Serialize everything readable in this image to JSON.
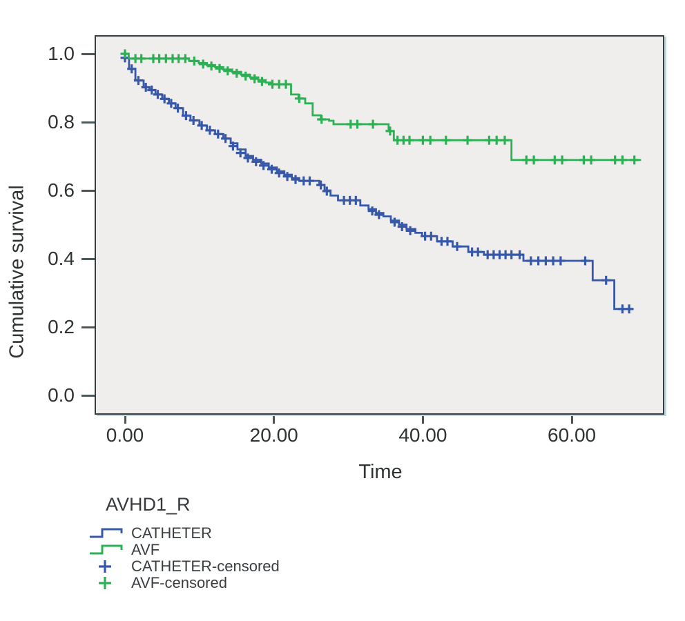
{
  "chart_data": {
    "type": "line",
    "subtype": "kaplan-meier-step",
    "xlabel": "Time",
    "ylabel": "Cumulative survival",
    "x_ticks": [
      {
        "value": 0,
        "label": "0.00"
      },
      {
        "value": 20,
        "label": "20.00"
      },
      {
        "value": 40,
        "label": "40.00"
      },
      {
        "value": 60,
        "label": "60.00"
      }
    ],
    "y_ticks": [
      {
        "value": 1.0,
        "label": "1.0"
      },
      {
        "value": 0.8,
        "label": "0.8"
      },
      {
        "value": 0.6,
        "label": "0.6"
      },
      {
        "value": 0.4,
        "label": "0.4"
      },
      {
        "value": 0.2,
        "label": "0.2"
      },
      {
        "value": 0.0,
        "label": "0.0"
      }
    ],
    "xlim": [
      -4.1,
      72.4
    ],
    "ylim": [
      -0.055,
      1.05
    ],
    "grid": false,
    "plot_bg": "#efeeec",
    "frame_color": "#363d3f",
    "series": [
      {
        "name": "CATHETER",
        "color": "#3758a8",
        "end_time": 68.2,
        "steps": [
          [
            0,
            0.988
          ],
          [
            0.55,
            0.956
          ],
          [
            1.4,
            0.922
          ],
          [
            2.5,
            0.902
          ],
          [
            3.3,
            0.894
          ],
          [
            4.1,
            0.881
          ],
          [
            5.0,
            0.868
          ],
          [
            5.9,
            0.855
          ],
          [
            6.8,
            0.841
          ],
          [
            7.8,
            0.819
          ],
          [
            8.8,
            0.805
          ],
          [
            10.0,
            0.79
          ],
          [
            11.0,
            0.776
          ],
          [
            12.1,
            0.765
          ],
          [
            13.2,
            0.752
          ],
          [
            14.2,
            0.738
          ],
          [
            15.1,
            0.72
          ],
          [
            16.2,
            0.701
          ],
          [
            17.2,
            0.69
          ],
          [
            18.3,
            0.679
          ],
          [
            19.3,
            0.667
          ],
          [
            20.4,
            0.656
          ],
          [
            21.4,
            0.646
          ],
          [
            22.4,
            0.636
          ],
          [
            23.4,
            0.628
          ],
          [
            26.1,
            0.616
          ],
          [
            26.8,
            0.6
          ],
          [
            27.6,
            0.585
          ],
          [
            28.6,
            0.571
          ],
          [
            31.6,
            0.556
          ],
          [
            32.7,
            0.545
          ],
          [
            33.7,
            0.534
          ],
          [
            34.7,
            0.524
          ],
          [
            35.7,
            0.512
          ],
          [
            36.8,
            0.5
          ],
          [
            37.8,
            0.487
          ],
          [
            39.0,
            0.476
          ],
          [
            39.9,
            0.466
          ],
          [
            41.9,
            0.451
          ],
          [
            44.0,
            0.436
          ],
          [
            46.1,
            0.42
          ],
          [
            48.2,
            0.412
          ],
          [
            53.5,
            0.394
          ],
          [
            62.8,
            0.337
          ],
          [
            65.7,
            0.253
          ]
        ],
        "censored": [
          [
            0.0,
            0.988
          ],
          [
            0.9,
            0.956
          ],
          [
            1.8,
            0.922
          ],
          [
            2.8,
            0.902
          ],
          [
            3.6,
            0.894
          ],
          [
            4.4,
            0.881
          ],
          [
            5.3,
            0.868
          ],
          [
            6.2,
            0.855
          ],
          [
            7.1,
            0.841
          ],
          [
            8.2,
            0.819
          ],
          [
            9.2,
            0.805
          ],
          [
            10.3,
            0.79
          ],
          [
            11.4,
            0.776
          ],
          [
            12.5,
            0.765
          ],
          [
            13.5,
            0.752
          ],
          [
            14.5,
            0.73
          ],
          [
            15.5,
            0.71
          ],
          [
            16.5,
            0.695
          ],
          [
            17.6,
            0.684
          ],
          [
            18.6,
            0.673
          ],
          [
            19.7,
            0.662
          ],
          [
            20.7,
            0.651
          ],
          [
            21.8,
            0.641
          ],
          [
            22.9,
            0.632
          ],
          [
            24.0,
            0.628
          ],
          [
            24.8,
            0.628
          ],
          [
            26.3,
            0.616
          ],
          [
            27.1,
            0.598
          ],
          [
            29.4,
            0.571
          ],
          [
            30.2,
            0.571
          ],
          [
            31.0,
            0.571
          ],
          [
            33.2,
            0.54
          ],
          [
            34.1,
            0.529
          ],
          [
            36.2,
            0.507
          ],
          [
            37.2,
            0.494
          ],
          [
            38.3,
            0.482
          ],
          [
            40.3,
            0.466
          ],
          [
            41.1,
            0.466
          ],
          [
            42.5,
            0.451
          ],
          [
            43.3,
            0.451
          ],
          [
            44.6,
            0.436
          ],
          [
            46.6,
            0.42
          ],
          [
            47.4,
            0.42
          ],
          [
            48.7,
            0.412
          ],
          [
            49.5,
            0.412
          ],
          [
            50.3,
            0.412
          ],
          [
            51.1,
            0.412
          ],
          [
            51.9,
            0.412
          ],
          [
            53.0,
            0.412
          ],
          [
            54.5,
            0.394
          ],
          [
            55.5,
            0.394
          ],
          [
            56.5,
            0.394
          ],
          [
            57.5,
            0.394
          ],
          [
            58.5,
            0.394
          ],
          [
            61.8,
            0.394
          ],
          [
            64.6,
            0.337
          ],
          [
            66.8,
            0.253
          ],
          [
            67.7,
            0.253
          ]
        ]
      },
      {
        "name": "AVF",
        "color": "#2bb053",
        "end_time": 69.3,
        "steps": [
          [
            0,
            1.0
          ],
          [
            0.5,
            0.986
          ],
          [
            8.6,
            0.979
          ],
          [
            9.9,
            0.973
          ],
          [
            11.0,
            0.967
          ],
          [
            12.1,
            0.961
          ],
          [
            13.2,
            0.954
          ],
          [
            14.4,
            0.947
          ],
          [
            15.6,
            0.939
          ],
          [
            16.8,
            0.931
          ],
          [
            17.9,
            0.923
          ],
          [
            18.9,
            0.916
          ],
          [
            19.6,
            0.911
          ],
          [
            22.3,
            0.881
          ],
          [
            23.3,
            0.869
          ],
          [
            24.2,
            0.855
          ],
          [
            25.2,
            0.82
          ],
          [
            26.3,
            0.808
          ],
          [
            27.4,
            0.804
          ],
          [
            28.0,
            0.794
          ],
          [
            35.4,
            0.774
          ],
          [
            36.1,
            0.747
          ],
          [
            51.9,
            0.689
          ]
        ],
        "censored": [
          [
            0.0,
            1.0
          ],
          [
            1.4,
            0.986
          ],
          [
            2.2,
            0.986
          ],
          [
            3.8,
            0.986
          ],
          [
            4.6,
            0.986
          ],
          [
            5.5,
            0.986
          ],
          [
            6.4,
            0.986
          ],
          [
            7.2,
            0.986
          ],
          [
            8.1,
            0.986
          ],
          [
            9.3,
            0.979
          ],
          [
            10.5,
            0.97
          ],
          [
            11.6,
            0.964
          ],
          [
            12.7,
            0.957
          ],
          [
            13.8,
            0.95
          ],
          [
            15.0,
            0.943
          ],
          [
            16.2,
            0.935
          ],
          [
            17.4,
            0.927
          ],
          [
            18.4,
            0.919
          ],
          [
            19.8,
            0.911
          ],
          [
            20.7,
            0.911
          ],
          [
            21.6,
            0.911
          ],
          [
            23.4,
            0.869
          ],
          [
            26.4,
            0.808
          ],
          [
            30.3,
            0.794
          ],
          [
            31.2,
            0.794
          ],
          [
            33.3,
            0.794
          ],
          [
            35.6,
            0.774
          ],
          [
            36.6,
            0.747
          ],
          [
            37.4,
            0.747
          ],
          [
            38.2,
            0.747
          ],
          [
            40.0,
            0.747
          ],
          [
            41.0,
            0.747
          ],
          [
            43.1,
            0.747
          ],
          [
            46.0,
            0.747
          ],
          [
            48.9,
            0.747
          ],
          [
            49.9,
            0.747
          ],
          [
            51.0,
            0.747
          ],
          [
            53.9,
            0.689
          ],
          [
            54.9,
            0.689
          ],
          [
            57.7,
            0.689
          ],
          [
            58.7,
            0.689
          ],
          [
            61.6,
            0.689
          ],
          [
            62.6,
            0.689
          ],
          [
            65.8,
            0.689
          ],
          [
            66.8,
            0.689
          ],
          [
            68.4,
            0.689
          ]
        ]
      }
    ],
    "legend": {
      "title": "AVHD1_R",
      "position": "bottom-left",
      "items": [
        {
          "label": "CATHETER",
          "symbol": "step-line",
          "color": "#3758a8"
        },
        {
          "label": "AVF",
          "symbol": "step-line",
          "color": "#2bb053"
        },
        {
          "label": "CATHETER-censored",
          "symbol": "plus",
          "color": "#3758a8"
        },
        {
          "label": "AVF-censored",
          "symbol": "plus",
          "color": "#2bb053"
        }
      ]
    }
  }
}
